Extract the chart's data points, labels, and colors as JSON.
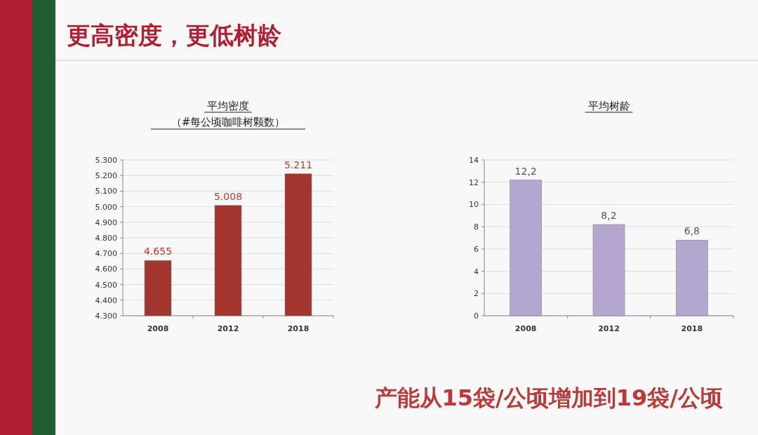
{
  "chart_data": [
    {
      "type": "bar",
      "title": "平均密度",
      "subtitle": "（#每公顷咖啡树颗数）",
      "annotations": [
        "更高密度，更低树龄"
      ],
      "categories": [
        "2008",
        "2012",
        "2018"
      ],
      "values": [
        4655,
        5008,
        5211
      ],
      "value_labels": [
        "4.655",
        "5.008",
        "5.211"
      ],
      "color": "#a3352f",
      "ylim": [
        4300,
        5300
      ],
      "yticks": [
        {
          "value": 4300,
          "label": "4.300"
        },
        {
          "value": 4400,
          "label": "4.400"
        },
        {
          "value": 4500,
          "label": "4.500"
        },
        {
          "value": 4600,
          "label": "4.600"
        },
        {
          "value": 4700,
          "label": "4.700"
        },
        {
          "value": 4800,
          "label": "4.800"
        },
        {
          "value": 4900,
          "label": "4.900"
        },
        {
          "value": 5000,
          "label": "5.000"
        },
        {
          "value": 5100,
          "label": "5.100"
        },
        {
          "value": 5200,
          "label": "5.200"
        },
        {
          "value": 5300,
          "label": "5.300"
        }
      ],
      "grid": "y"
    },
    {
      "type": "bar",
      "title": "平均树龄",
      "annotations": [
        "产能从15袋/公顷增加到19袋/公顷"
      ],
      "categories": [
        "2008",
        "2012",
        "2018"
      ],
      "values": [
        12.2,
        8.2,
        6.8
      ],
      "value_labels": [
        "12,2",
        "8,2",
        "6,8"
      ],
      "color": "#b4a7cf",
      "ylim": [
        0,
        14
      ],
      "yticks": [
        0,
        2,
        4,
        6,
        8,
        10,
        12,
        14
      ],
      "grid": "y"
    }
  ]
}
